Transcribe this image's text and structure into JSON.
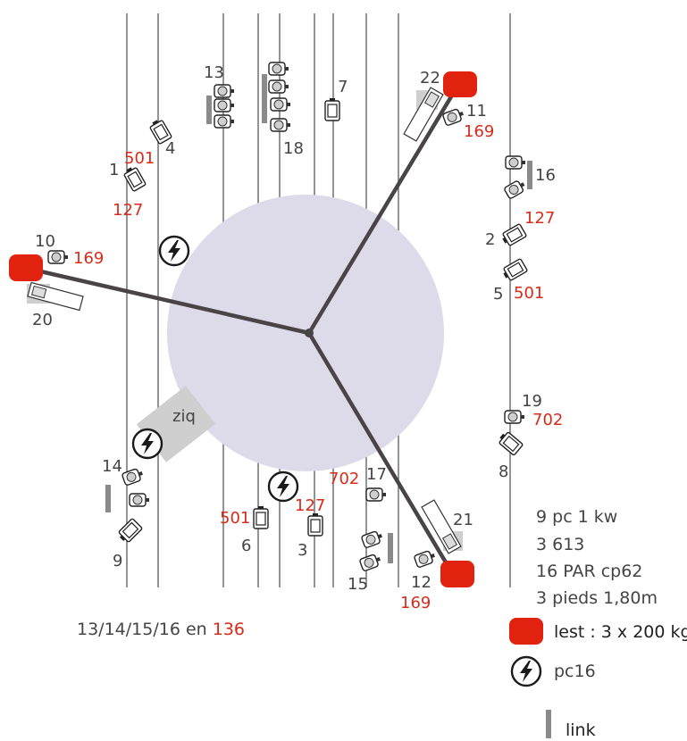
{
  "colors": {
    "truss_line": "#4a4446",
    "stage_circle": "#dddbea",
    "ballast": "#e0220f",
    "link_bar": "#8a8a8a",
    "red_text": "#d92b1a",
    "grey_text": "#444444",
    "ziq_box": "#cfcfcf"
  },
  "icons": {
    "power": "lightning-circle-icon",
    "fixture": "spotlight-fixture-icon",
    "par": "par-can-icon"
  },
  "fixtures": {
    "f1": {
      "number": "1",
      "gel_top": "501",
      "gel_bottom": "127"
    },
    "f2": {
      "number": "2",
      "gel": "127"
    },
    "f3": {
      "number": "3",
      "gel": "127"
    },
    "f4": {
      "number": "4"
    },
    "f5": {
      "number": "5",
      "gel": "501"
    },
    "f6": {
      "number": "6",
      "gel": "501"
    },
    "f7": {
      "number": "7"
    },
    "f8": {
      "number": "8"
    },
    "f9": {
      "number": "9"
    },
    "f10": {
      "number": "10",
      "gel": "169"
    },
    "f11": {
      "number": "11",
      "gel": "169"
    },
    "f12": {
      "number": "12",
      "gel": "169"
    },
    "f13": {
      "number": "13"
    },
    "f14": {
      "number": "14"
    },
    "f15": {
      "number": "15"
    },
    "f16": {
      "number": "16"
    },
    "f17": {
      "number": "17",
      "gel": "702"
    },
    "f18": {
      "number": "18"
    },
    "f19": {
      "number": "19",
      "gel": "702"
    },
    "f20": {
      "number": "20"
    },
    "f21": {
      "number": "21"
    },
    "f22": {
      "number": "22"
    }
  },
  "ziq_label": "ziq",
  "note": {
    "prefix": "13/14/15/16 en ",
    "value": "136"
  },
  "inventory": [
    "9 pc 1 kw",
    "3 613",
    "16 PAR cp62",
    "3 pieds 1,80m"
  ],
  "legend": {
    "ballast": "lest : 3 x 200 kg",
    "power": "pc16",
    "link": "link"
  }
}
